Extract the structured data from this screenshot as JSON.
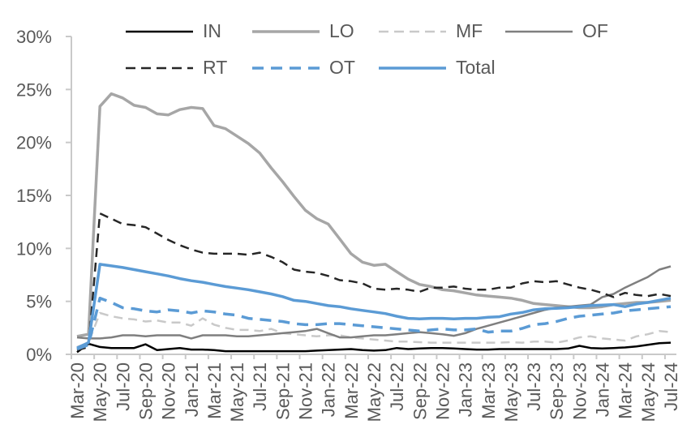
{
  "chart_data": {
    "type": "line",
    "title": "",
    "xlabel": "",
    "ylabel": "",
    "ylim": [
      0,
      30
    ],
    "grid": false,
    "legend_position": "top",
    "x_tick_label_interval": 2,
    "y_tick_labels": [
      "0%",
      "5%",
      "10%",
      "15%",
      "20%",
      "25%",
      "30%"
    ],
    "axis_color": "#c9c9c9",
    "label_color": "#595959",
    "categories": [
      "Mar-20",
      "Apr-20",
      "May-20",
      "Jun-20",
      "Jul-20",
      "Aug-20",
      "Sep-20",
      "Oct-20",
      "Nov-20",
      "Dec-20",
      "Jan-21",
      "Feb-21",
      "Mar-21",
      "Apr-21",
      "May-21",
      "Jun-21",
      "Jul-21",
      "Aug-21",
      "Sep-21",
      "Oct-21",
      "Nov-21",
      "Dec-21",
      "Jan-22",
      "Feb-22",
      "Mar-22",
      "Apr-22",
      "May-22",
      "Jun-22",
      "Jul-22",
      "Aug-22",
      "Sep-22",
      "Oct-22",
      "Nov-22",
      "Dec-22",
      "Jan-23",
      "Feb-23",
      "Mar-23",
      "Apr-23",
      "May-23",
      "Jun-23",
      "Jul-23",
      "Aug-23",
      "Sep-23",
      "Oct-23",
      "Nov-23",
      "Dec-23",
      "Jan-24",
      "Feb-24",
      "Mar-24",
      "Apr-24",
      "May-24",
      "Jun-24",
      "Jul-24"
    ],
    "series": [
      {
        "name": "IN",
        "color": "#000000",
        "line_style": "solid",
        "width": 2.5,
        "values": [
          0.2,
          1.0,
          0.7,
          0.6,
          0.6,
          0.6,
          0.95,
          0.4,
          0.5,
          0.6,
          0.45,
          0.45,
          0.4,
          0.3,
          0.3,
          0.3,
          0.3,
          0.3,
          0.3,
          0.3,
          0.3,
          0.35,
          0.4,
          0.45,
          0.5,
          0.4,
          0.35,
          0.4,
          0.6,
          0.5,
          0.55,
          0.6,
          0.6,
          0.55,
          0.5,
          0.45,
          0.45,
          0.5,
          0.5,
          0.5,
          0.5,
          0.5,
          0.5,
          0.55,
          0.8,
          0.6,
          0.55,
          0.6,
          0.65,
          0.75,
          0.9,
          1.05,
          1.1
        ]
      },
      {
        "name": "LO",
        "color": "#a6a6a6",
        "line_style": "solid",
        "width": 3.5,
        "values": [
          1.7,
          1.9,
          23.4,
          24.6,
          24.2,
          23.5,
          23.3,
          22.7,
          22.6,
          23.1,
          23.3,
          23.2,
          21.6,
          21.3,
          20.6,
          19.9,
          19.0,
          17.6,
          16.3,
          14.9,
          13.6,
          12.8,
          12.3,
          10.9,
          9.5,
          8.7,
          8.4,
          8.5,
          7.8,
          7.1,
          6.6,
          6.4,
          6.1,
          6.0,
          5.8,
          5.6,
          5.5,
          5.4,
          5.3,
          5.1,
          4.8,
          4.7,
          4.6,
          4.5,
          4.4,
          4.4,
          4.5,
          4.7,
          4.8,
          4.9,
          4.9,
          5.0,
          5.1
        ]
      },
      {
        "name": "MF",
        "color": "#c9c9c9",
        "line_style": "dashed",
        "width": 2.5,
        "values": [
          0.7,
          1.1,
          3.9,
          3.6,
          3.4,
          3.3,
          3.1,
          3.2,
          3.0,
          3.0,
          2.7,
          3.4,
          2.8,
          2.5,
          2.3,
          2.3,
          2.2,
          2.4,
          2.0,
          1.9,
          1.8,
          1.7,
          1.8,
          1.8,
          1.6,
          1.5,
          1.4,
          1.3,
          1.2,
          1.2,
          1.15,
          1.1,
          1.1,
          1.1,
          1.1,
          1.1,
          1.1,
          1.1,
          1.15,
          1.1,
          1.2,
          1.2,
          1.1,
          1.3,
          1.6,
          1.7,
          1.5,
          1.4,
          1.3,
          1.7,
          1.9,
          2.2,
          2.1
        ]
      },
      {
        "name": "OF",
        "color": "#7f7f7f",
        "line_style": "solid",
        "width": 2.5,
        "values": [
          1.6,
          1.5,
          1.5,
          1.6,
          1.8,
          1.8,
          1.7,
          1.8,
          1.8,
          1.8,
          1.5,
          1.8,
          1.8,
          1.8,
          1.7,
          1.7,
          1.8,
          1.9,
          2.0,
          2.1,
          2.2,
          2.4,
          2.0,
          1.6,
          1.6,
          1.7,
          1.8,
          1.8,
          1.9,
          2.0,
          2.1,
          2.0,
          1.9,
          1.75,
          2.0,
          2.4,
          2.7,
          3.0,
          3.3,
          3.6,
          3.9,
          4.2,
          4.4,
          4.5,
          4.6,
          4.7,
          5.4,
          5.7,
          6.3,
          6.8,
          7.3,
          8.0,
          8.3
        ]
      },
      {
        "name": "RT",
        "color": "#262626",
        "line_style": "dashed",
        "width": 2.5,
        "values": [
          0.4,
          0.7,
          13.3,
          12.8,
          12.3,
          12.2,
          12.0,
          11.4,
          10.8,
          10.3,
          9.9,
          9.6,
          9.5,
          9.5,
          9.5,
          9.4,
          9.6,
          9.2,
          8.7,
          8.0,
          7.8,
          7.7,
          7.4,
          7.0,
          6.9,
          6.7,
          6.2,
          6.1,
          6.2,
          6.1,
          5.9,
          6.3,
          6.3,
          6.4,
          6.2,
          6.1,
          6.1,
          6.3,
          6.3,
          6.7,
          6.9,
          6.8,
          6.9,
          6.6,
          6.3,
          6.1,
          5.8,
          5.4,
          5.8,
          5.6,
          5.5,
          5.7,
          5.5
        ]
      },
      {
        "name": "OT",
        "color": "#5b9bd5",
        "line_style": "dashed",
        "width": 3.5,
        "values": [
          0.5,
          0.9,
          5.3,
          4.9,
          4.4,
          4.3,
          4.1,
          4.0,
          4.2,
          4.1,
          3.9,
          4.1,
          4.0,
          3.8,
          3.7,
          3.4,
          3.3,
          3.2,
          3.1,
          2.9,
          2.8,
          2.8,
          2.9,
          2.9,
          2.8,
          2.7,
          2.6,
          2.5,
          2.4,
          2.3,
          2.2,
          2.3,
          2.4,
          2.3,
          2.3,
          2.4,
          2.1,
          2.2,
          2.2,
          2.45,
          2.8,
          2.9,
          3.1,
          3.4,
          3.6,
          3.7,
          3.8,
          3.9,
          4.1,
          4.2,
          4.3,
          4.4,
          4.5
        ]
      },
      {
        "name": "Total",
        "color": "#5b9bd5",
        "line_style": "solid",
        "width": 3.5,
        "values": [
          0.6,
          1.1,
          8.5,
          8.35,
          8.2,
          8.0,
          7.8,
          7.6,
          7.4,
          7.15,
          6.95,
          6.8,
          6.6,
          6.4,
          6.25,
          6.1,
          5.9,
          5.7,
          5.45,
          5.1,
          5.0,
          4.8,
          4.6,
          4.5,
          4.3,
          4.15,
          4.0,
          3.85,
          3.6,
          3.4,
          3.35,
          3.4,
          3.4,
          3.35,
          3.4,
          3.4,
          3.5,
          3.55,
          3.8,
          3.95,
          4.2,
          4.3,
          4.35,
          4.4,
          4.5,
          4.6,
          4.65,
          4.7,
          4.5,
          4.75,
          4.9,
          5.1,
          5.3
        ]
      }
    ],
    "legend_rows": [
      [
        0,
        1,
        2,
        3
      ],
      [
        4,
        5,
        6
      ]
    ]
  }
}
